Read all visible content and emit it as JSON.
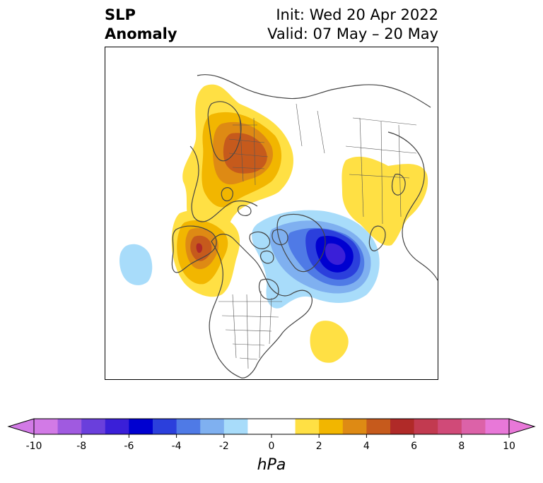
{
  "title": {
    "left_line1": "SLP",
    "left_line2": "Anomaly",
    "right_line1": "Init: Wed 20 Apr 2022",
    "right_line2": "Valid: 07 May – 20 May"
  },
  "colorbar": {
    "unit": "hPa",
    "min": -10,
    "max": 10,
    "extend": "both",
    "ticks": [
      "-10",
      "-8",
      "-6",
      "-4",
      "-2",
      "0",
      "2",
      "4",
      "6",
      "8",
      "10"
    ],
    "bins": [
      {
        "from": -10,
        "to": -9,
        "color": "#d27ae6"
      },
      {
        "from": -9,
        "to": -8,
        "color": "#a05ae0"
      },
      {
        "from": -8,
        "to": -7,
        "color": "#6a3fdc"
      },
      {
        "from": -7,
        "to": -6,
        "color": "#3a1fd8"
      },
      {
        "from": -6,
        "to": -5,
        "color": "#0000d0"
      },
      {
        "from": -5,
        "to": -4,
        "color": "#2b3fdc"
      },
      {
        "from": -4,
        "to": -3,
        "color": "#4f7ae6"
      },
      {
        "from": -3,
        "to": -2,
        "color": "#7fb0f0"
      },
      {
        "from": -2,
        "to": -1,
        "color": "#a8dcfa"
      },
      {
        "from": -1,
        "to": 1,
        "color": "#ffffff"
      },
      {
        "from": 1,
        "to": 2,
        "color": "#ffe044"
      },
      {
        "from": 2,
        "to": 3,
        "color": "#f2b600"
      },
      {
        "from": 3,
        "to": 4,
        "color": "#de8a14"
      },
      {
        "from": 4,
        "to": 5,
        "color": "#c65a1c"
      },
      {
        "from": 5,
        "to": 6,
        "color": "#b02a28"
      },
      {
        "from": 6,
        "to": 7,
        "color": "#c23a50"
      },
      {
        "from": 7,
        "to": 8,
        "color": "#d04a78"
      },
      {
        "from": 8,
        "to": 9,
        "color": "#dc62a8"
      },
      {
        "from": 9,
        "to": 10,
        "color": "#e878d8"
      }
    ],
    "under_color": "#d27ae6",
    "over_color": "#e878d8"
  },
  "map": {
    "projection": "north-polar-stereographic",
    "field": "sea level pressure anomaly",
    "features": [
      {
        "name": "positive anomaly over Scandinavia / NW Russia",
        "peak": 5,
        "sign": "positive"
      },
      {
        "name": "positive anomaly over Alaska / Gulf of Alaska",
        "peak": 6,
        "sign": "positive"
      },
      {
        "name": "positive anomaly over East Asia",
        "peak": 2,
        "sign": "positive"
      },
      {
        "name": "positive anomaly over central Atlantic",
        "peak": 2,
        "sign": "positive"
      },
      {
        "name": "negative anomaly over Greenland / Labrador Sea",
        "peak": -6,
        "sign": "negative"
      },
      {
        "name": "negative anomaly over central Pacific",
        "peak": -2,
        "sign": "negative"
      }
    ]
  }
}
